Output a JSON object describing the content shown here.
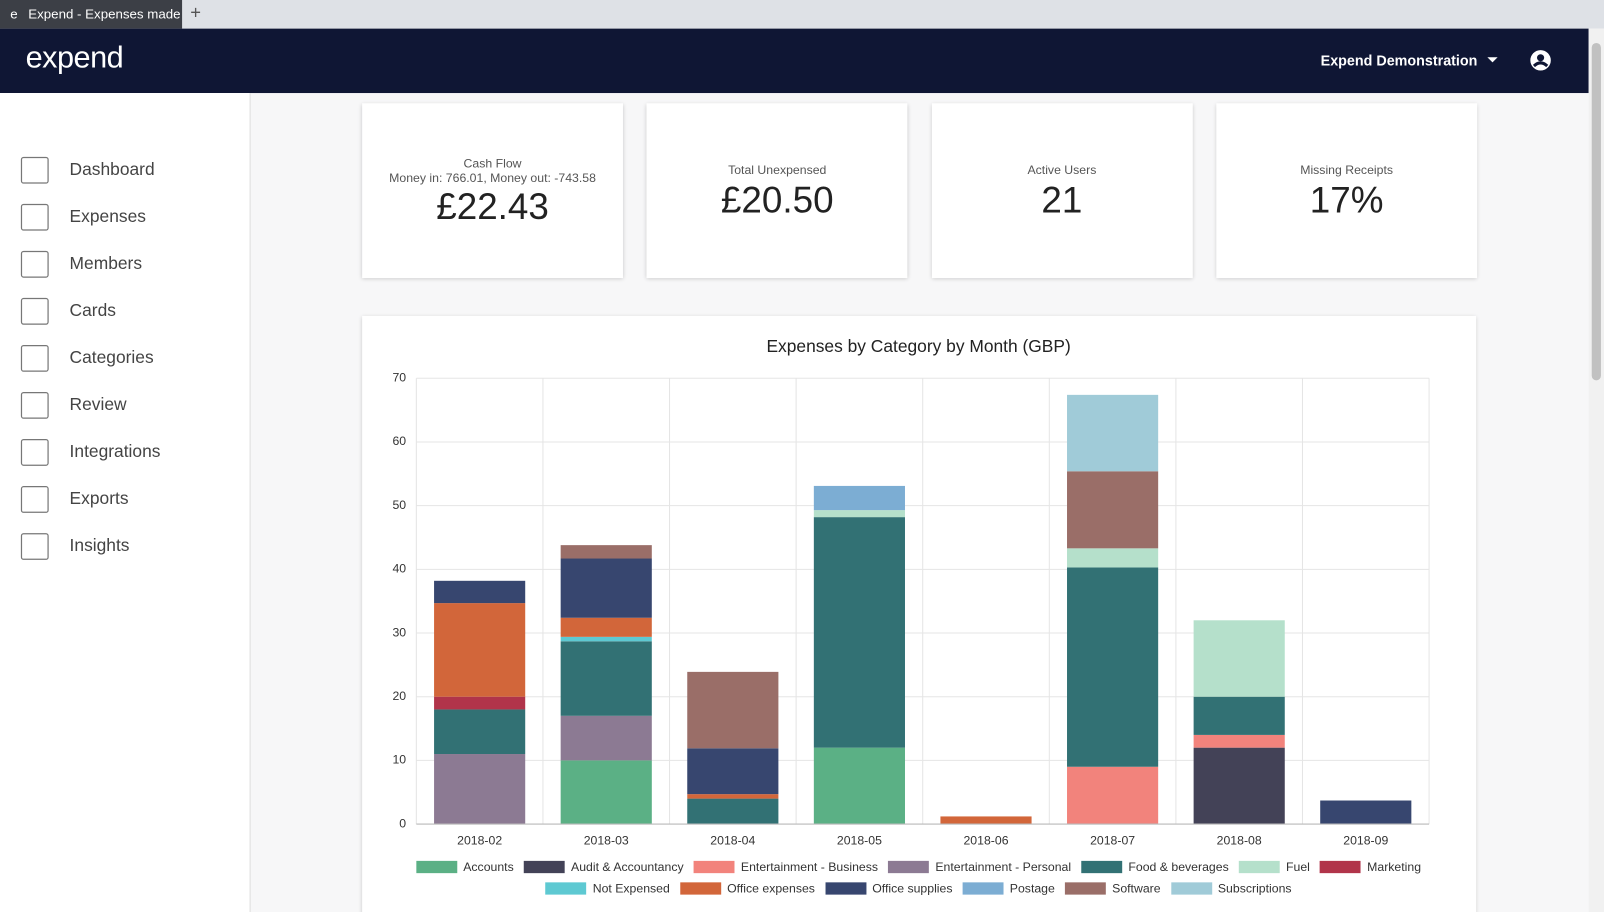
{
  "browser_tab": {
    "title": "Expend - Expenses made"
  },
  "header": {
    "logo": "expend",
    "account": "Expend Demonstration"
  },
  "sidebar": {
    "items": [
      "Dashboard",
      "Expenses",
      "Members",
      "Cards",
      "Categories",
      "Review",
      "Integrations",
      "Exports",
      "Insights"
    ]
  },
  "kpis": [
    {
      "label": "Cash Flow",
      "sub": "Money in: 766.01, Money out: -743.58",
      "value": "£22.43"
    },
    {
      "label": "Total Unexpensed",
      "value": "£20.50"
    },
    {
      "label": "Active Users",
      "value": "21"
    },
    {
      "label": "Missing Receipts",
      "value": "17%"
    }
  ],
  "chart_data": {
    "type": "stacked_bar",
    "title": "Expenses by Category by Month (GBP)",
    "categories": [
      "2018-02",
      "2018-03",
      "2018-04",
      "2018-05",
      "2018-06",
      "2018-07",
      "2018-08",
      "2018-09"
    ],
    "ylim": [
      0,
      70
    ],
    "yticks": [
      0,
      10,
      20,
      30,
      40,
      50,
      60,
      70
    ],
    "grid": true,
    "series": [
      {
        "name": "Accounts",
        "color": "#5bb085",
        "values": [
          0,
          10,
          0,
          12,
          0,
          0,
          0,
          0
        ]
      },
      {
        "name": "Audit & Accountancy",
        "color": "#434257",
        "values": [
          0,
          0,
          0,
          0,
          0,
          0,
          12,
          0
        ]
      },
      {
        "name": "Entertainment - Business",
        "color": "#f2837c",
        "values": [
          0,
          0,
          0,
          0,
          0,
          9,
          2,
          0
        ]
      },
      {
        "name": "Entertainment - Personal",
        "color": "#8c7a93",
        "values": [
          11,
          7,
          0,
          0,
          0,
          0,
          0,
          0
        ]
      },
      {
        "name": "Food & beverages",
        "color": "#327174",
        "values": [
          7,
          11.7,
          4,
          36.2,
          0,
          31.3,
          6,
          0
        ]
      },
      {
        "name": "Fuel",
        "color": "#b5e0cb",
        "values": [
          0,
          0,
          0,
          1.1,
          0,
          3,
          12,
          0
        ]
      },
      {
        "name": "Marketing",
        "color": "#b1344a",
        "values": [
          2,
          0,
          0,
          0,
          0,
          0,
          0,
          0
        ]
      },
      {
        "name": "Not Expensed",
        "color": "#5ec9d2",
        "values": [
          0,
          0.7,
          0,
          0,
          0,
          0,
          0,
          0
        ]
      },
      {
        "name": "Office expenses",
        "color": "#d2663a",
        "values": [
          14.7,
          3,
          0.7,
          0,
          1.2,
          0,
          0,
          0
        ]
      },
      {
        "name": "Office supplies",
        "color": "#37466f",
        "values": [
          3.5,
          9.3,
          7.2,
          0,
          0,
          0,
          0,
          3.7
        ]
      },
      {
        "name": "Postage",
        "color": "#7cadd3",
        "values": [
          0,
          0,
          0,
          3.8,
          0,
          0,
          0,
          0
        ]
      },
      {
        "name": "Software",
        "color": "#9a6e68",
        "values": [
          0,
          2.1,
          12,
          0,
          0,
          12.1,
          0,
          0
        ]
      },
      {
        "name": "Subscriptions",
        "color": "#a0cbd8",
        "values": [
          0,
          0,
          0,
          0,
          0,
          12,
          0,
          0
        ]
      }
    ]
  }
}
